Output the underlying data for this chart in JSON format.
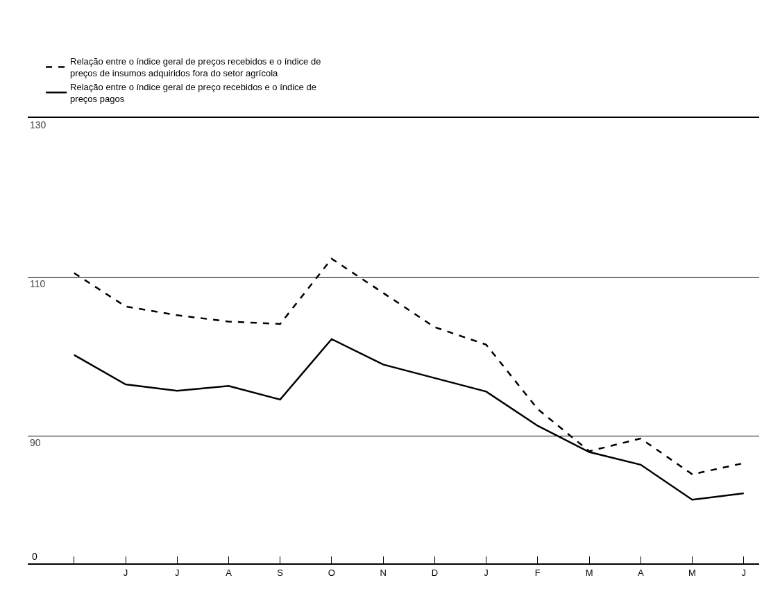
{
  "chart_data": {
    "type": "line",
    "categories": [
      null,
      "J",
      "J",
      "A",
      "S",
      "O",
      "N",
      "D",
      "J",
      "F",
      "M",
      "A",
      "M",
      "J"
    ],
    "series": [
      {
        "name": "Relação entre o índice geral de preços recebidos e o índice de preços de insumos adquiridos fora do setor agrícola",
        "color": "#000000",
        "line_style": "dashed",
        "values": [
          110.5,
          106.3,
          105.2,
          104.4,
          104.1,
          112.3,
          108,
          103.7,
          101.5,
          93.4,
          88.1,
          89.7,
          85.2,
          86.6
        ]
      },
      {
        "name": "Relação entre o índice geral de preço recebidos e o índice de preços pagos",
        "color": "#000000",
        "line_style": "solid",
        "values": [
          100.2,
          96.5,
          95.7,
          96.3,
          94.6,
          102.2,
          99,
          97.3,
          95.6,
          91.3,
          88,
          86.4,
          82,
          82.8
        ]
      }
    ],
    "ylim": [
      74,
      130
    ],
    "yticks": [
      90,
      110,
      130
    ],
    "grid": "y",
    "legend": "top",
    "marker": "none",
    "annotations": [
      "0"
    ]
  }
}
